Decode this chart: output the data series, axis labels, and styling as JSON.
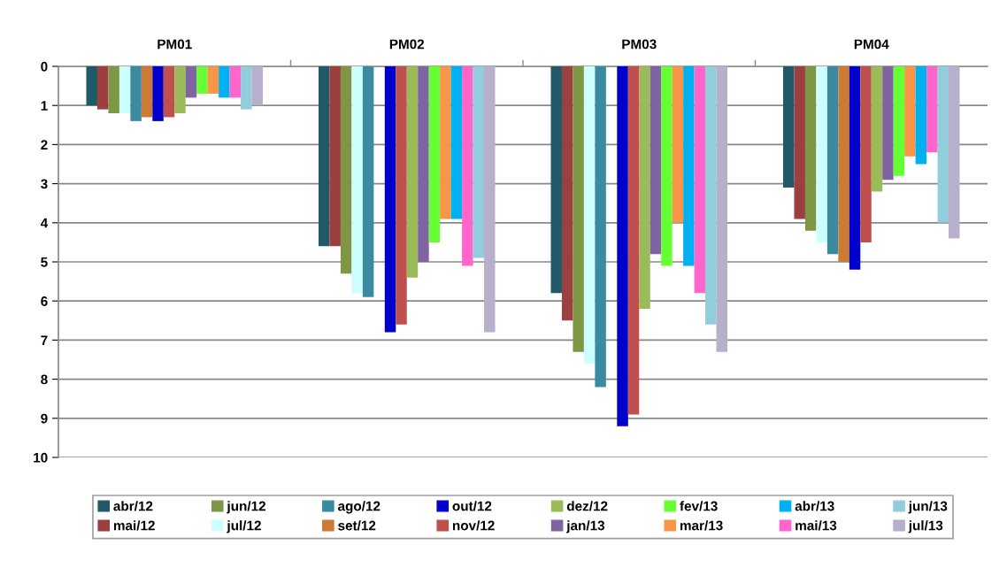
{
  "chart_data": {
    "type": "bar",
    "categories": [
      "PM01",
      "PM02",
      "PM03",
      "PM04"
    ],
    "ylim": [
      10,
      0
    ],
    "yticks": [
      0,
      1,
      2,
      3,
      4,
      5,
      6,
      7,
      8,
      9,
      10
    ],
    "grid": "y",
    "legend": "bottom",
    "series": [
      {
        "name": "abr/12",
        "color": "#215968",
        "values": [
          1.0,
          4.6,
          5.8,
          3.1
        ]
      },
      {
        "name": "mai/12",
        "color": "#9b3f3f",
        "values": [
          1.1,
          4.6,
          6.5,
          3.9
        ]
      },
      {
        "name": "jun/12",
        "color": "#7f9645",
        "values": [
          1.2,
          5.3,
          7.3,
          4.2
        ]
      },
      {
        "name": "jul/12",
        "color": "#ccffff",
        "values": [
          1.2,
          5.8,
          7.6,
          4.5
        ]
      },
      {
        "name": "ago/12",
        "color": "#3a8aa0",
        "values": [
          1.4,
          5.9,
          8.2,
          4.8
        ]
      },
      {
        "name": "set/12",
        "color": "#cc7a36",
        "values": [
          1.3,
          null,
          null,
          5.0
        ]
      },
      {
        "name": "out/12",
        "color": "#0000cc",
        "values": [
          1.4,
          6.8,
          9.2,
          5.2
        ]
      },
      {
        "name": "nov/12",
        "color": "#c0504d",
        "values": [
          1.3,
          6.6,
          8.9,
          4.5
        ]
      },
      {
        "name": "dez/12",
        "color": "#9bbb59",
        "values": [
          1.2,
          5.4,
          6.2,
          3.2
        ]
      },
      {
        "name": "jan/13",
        "color": "#8064a2",
        "values": [
          0.8,
          5.0,
          4.8,
          2.9
        ]
      },
      {
        "name": "fev/13",
        "color": "#66ff33",
        "values": [
          0.7,
          4.5,
          5.1,
          2.8
        ]
      },
      {
        "name": "mar/13",
        "color": "#f79646",
        "values": [
          0.7,
          3.9,
          4.0,
          2.3
        ]
      },
      {
        "name": "abr/13",
        "color": "#00b0f0",
        "values": [
          0.8,
          3.9,
          5.1,
          2.5
        ]
      },
      {
        "name": "mai/13",
        "color": "#ff66cc",
        "values": [
          0.8,
          5.1,
          5.8,
          2.2
        ]
      },
      {
        "name": "jun/13",
        "color": "#92cddc",
        "values": [
          1.1,
          4.9,
          6.6,
          4.0
        ]
      },
      {
        "name": "jul/13",
        "color": "#b8afcc",
        "values": [
          1.0,
          6.8,
          7.3,
          4.4
        ]
      }
    ]
  }
}
